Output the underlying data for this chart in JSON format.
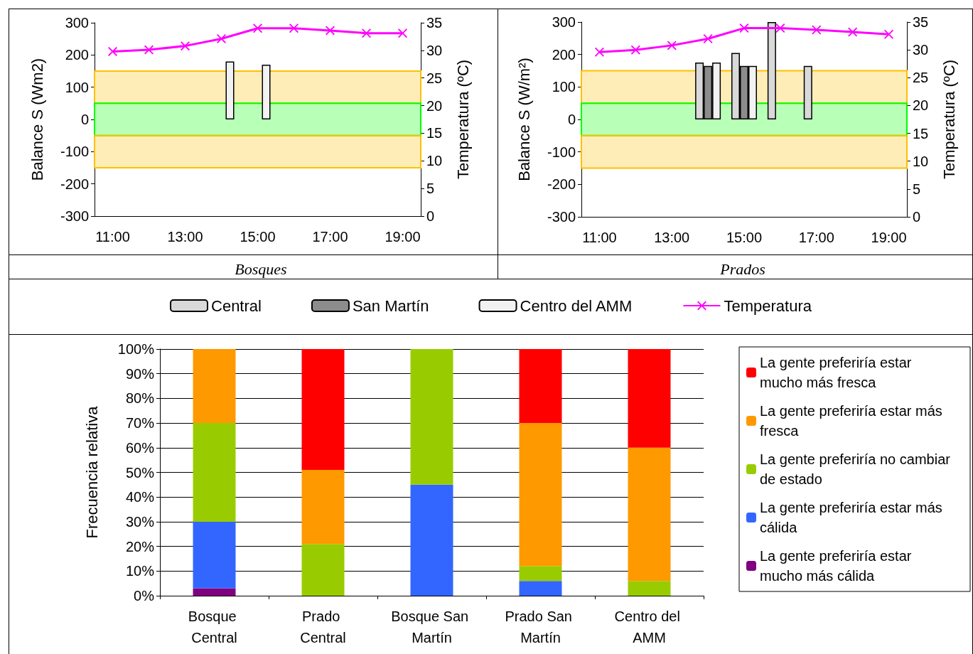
{
  "chart_data": [
    {
      "type": "bar",
      "title": "Bosques",
      "ylabel": "Balance S (Wm2)",
      "y2label": "Temperatura (ºC)",
      "categories": [
        "11:00",
        null,
        "13:00",
        null,
        "15:00",
        null,
        "17:00",
        null,
        "19:00"
      ],
      "series": [
        {
          "name": "Central",
          "color": "#d9d9d9",
          "values": [
            null,
            null,
            null,
            null,
            null,
            null,
            null,
            null,
            null
          ]
        },
        {
          "name": "San Martín",
          "color": "#8c8c8c",
          "values": [
            null,
            null,
            null,
            null,
            null,
            null,
            null,
            null,
            null
          ]
        },
        {
          "name": "Centro del AMM",
          "color": "#f2f2f2",
          "values": [
            null,
            null,
            null,
            180,
            170,
            null,
            null,
            null,
            null
          ]
        },
        {
          "name": "Temperatura",
          "type": "line",
          "axis": "y2",
          "color": "#ff00ff",
          "values": [
            29.8,
            30.1,
            30.8,
            32.1,
            34.0,
            34.0,
            33.6,
            33.1,
            33.1
          ]
        }
      ],
      "ylim": [
        -300,
        300
      ],
      "yticks": [
        -300,
        -200,
        -100,
        0,
        100,
        200,
        300
      ],
      "y2lim": [
        0,
        35
      ],
      "y2ticks": [
        0,
        5,
        10,
        15,
        20,
        25,
        30,
        35
      ],
      "bands": [
        {
          "axis": "y",
          "from": 50,
          "to": 150,
          "color": "#ffc000"
        },
        {
          "axis": "y",
          "from": -50,
          "to": 50,
          "color": "#00ff00"
        },
        {
          "axis": "y",
          "from": -150,
          "to": -50,
          "color": "#ffc000"
        }
      ],
      "marker": "cross",
      "legend": "bottom"
    },
    {
      "type": "bar",
      "title": "Prados",
      "ylabel": "Balance S (W/m²)",
      "y2label": "Temperatura (ºC)",
      "categories": [
        "11:00",
        null,
        "13:00",
        null,
        "15:00",
        null,
        "17:00",
        null,
        "19:00"
      ],
      "series": [
        {
          "color": "#d9d9d9",
          "values": [
            null,
            null,
            null,
            175,
            205,
            300,
            165,
            null,
            null
          ]
        },
        {
          "color": "#8c8c8c",
          "values": [
            null,
            null,
            null,
            165,
            165,
            null,
            null,
            null,
            null
          ]
        },
        {
          "color": "#f2f2f2",
          "values": [
            null,
            null,
            null,
            175,
            165,
            null,
            null,
            null,
            null
          ]
        },
        {
          "type": "line",
          "axis": "y2",
          "color": "#ff00ff",
          "values": [
            29.6,
            30.0,
            30.8,
            32.0,
            33.9,
            33.9,
            33.6,
            33.2,
            32.8
          ]
        }
      ],
      "ylim": [
        -300,
        300
      ],
      "yticks": [
        -300,
        -200,
        -100,
        0,
        100,
        200,
        300
      ],
      "y2lim": [
        0,
        35
      ],
      "y2ticks": [
        0,
        5,
        10,
        15,
        20,
        25,
        30,
        35
      ],
      "bands": [
        {
          "axis": "y",
          "from": 50,
          "to": 150,
          "color": "#ffc000"
        },
        {
          "axis": "y",
          "from": -50,
          "to": 50,
          "color": "#00ff00"
        },
        {
          "axis": "y",
          "from": -150,
          "to": -50,
          "color": "#ffc000"
        }
      ],
      "marker": "cross",
      "legend": false
    },
    {
      "type": "bar",
      "stacked": true,
      "ylabel": "Frecuencia relativa",
      "categories": [
        "Bosque Central",
        "Prado Central",
        "Bosque San Martín",
        "Prado San Martín",
        "Centro del AMM"
      ],
      "series": [
        {
          "name": "La gente preferiría estar mucho más cálida",
          "color": "#800080",
          "values": [
            3,
            0,
            0,
            0,
            0
          ]
        },
        {
          "name": "La gente preferiría estar más cálida",
          "color": "#3366ff",
          "values": [
            27,
            0,
            45,
            6,
            0
          ]
        },
        {
          "name": "La gente preferiría no cambiar de estado",
          "color": "#99cc00",
          "values": [
            40,
            21,
            55,
            6,
            6
          ]
        },
        {
          "name": "La gente preferiría estar más fresca",
          "color": "#ff9900",
          "values": [
            30,
            30,
            0,
            58,
            54
          ]
        },
        {
          "name": "La gente preferiría estar mucho más fresca",
          "color": "#ff0000",
          "values": [
            0,
            49,
            0,
            30,
            40
          ]
        }
      ],
      "ylim": [
        0,
        100
      ],
      "yticks": [
        {
          "value": 0,
          "label": "0%"
        },
        {
          "value": 10,
          "label": "10%"
        },
        {
          "value": 20,
          "label": "20%"
        },
        {
          "value": 30,
          "label": "30%"
        },
        {
          "value": 40,
          "label": "40%"
        },
        {
          "value": 50,
          "label": "50%"
        },
        {
          "value": 60,
          "label": "60%"
        },
        {
          "value": 70,
          "label": "70%"
        },
        {
          "value": 80,
          "label": "80%"
        },
        {
          "value": 90,
          "label": "90%"
        },
        {
          "value": 100,
          "label": "100%"
        }
      ],
      "grid": "y",
      "legend": "right"
    }
  ]
}
